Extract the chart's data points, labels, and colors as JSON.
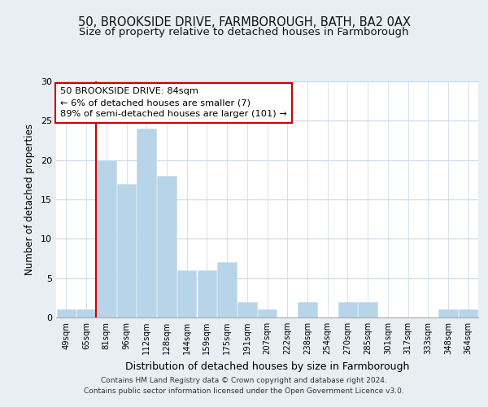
{
  "title": "50, BROOKSIDE DRIVE, FARMBOROUGH, BATH, BA2 0AX",
  "subtitle": "Size of property relative to detached houses in Farmborough",
  "xlabel": "Distribution of detached houses by size in Farmborough",
  "ylabel": "Number of detached properties",
  "categories": [
    "49sqm",
    "65sqm",
    "81sqm",
    "96sqm",
    "112sqm",
    "128sqm",
    "144sqm",
    "159sqm",
    "175sqm",
    "191sqm",
    "207sqm",
    "222sqm",
    "238sqm",
    "254sqm",
    "270sqm",
    "285sqm",
    "301sqm",
    "317sqm",
    "333sqm",
    "348sqm",
    "364sqm"
  ],
  "values": [
    1,
    1,
    20,
    17,
    24,
    18,
    6,
    6,
    7,
    2,
    1,
    0,
    2,
    0,
    2,
    2,
    0,
    0,
    0,
    1,
    1
  ],
  "bar_color": "#b8d4e8",
  "bar_edge_color": "#c8dff0",
  "vline_x": 1.5,
  "vline_color": "#cc0000",
  "ylim": [
    0,
    30
  ],
  "yticks": [
    0,
    5,
    10,
    15,
    20,
    25,
    30
  ],
  "annotation_title": "50 BROOKSIDE DRIVE: 84sqm",
  "annotation_line1": "← 6% of detached houses are smaller (7)",
  "annotation_line2": "89% of semi-detached houses are larger (101) →",
  "annotation_box_color": "#ffffff",
  "annotation_box_edge": "#cc0000",
  "footer_line1": "Contains HM Land Registry data © Crown copyright and database right 2024.",
  "footer_line2": "Contains public sector information licensed under the Open Government Licence v3.0.",
  "background_color": "#e8eef4",
  "plot_bg_color": "#ffffff",
  "title_fontsize": 10.5,
  "subtitle_fontsize": 9.5,
  "grid_color": "#c8d8e8"
}
